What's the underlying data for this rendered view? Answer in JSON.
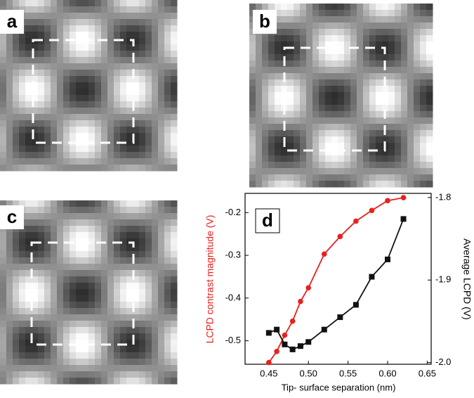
{
  "image_panels": [
    {
      "label": "a"
    },
    {
      "label": "b"
    },
    {
      "label": "c"
    }
  ],
  "chart_data": {
    "type": "line",
    "panel_label": "d",
    "xlabel": "Tip- surface separation (nm)",
    "ylabel": "LCPD contrast magnitude (V)",
    "y2label": "Average LCPD (V)",
    "xlim": [
      0.42,
      0.655
    ],
    "xticks": [
      0.45,
      {
        "value": 0.5,
        "label": "0.50"
      },
      0.55,
      {
        "value": 0.6,
        "label": "0.60"
      },
      0.65
    ],
    "ylim": [
      -0.555,
      -0.155
    ],
    "yticks": [
      -0.2,
      -0.3,
      -0.4,
      -0.5
    ],
    "y2lim": [
      -2.002,
      -1.795
    ],
    "y2ticks": [
      -1.8,
      -1.9,
      {
        "value": -2,
        "label": "-2.0"
      }
    ],
    "x": [
      0.45,
      0.46,
      0.47,
      0.48,
      0.49,
      0.5,
      0.52,
      0.54,
      0.56,
      0.58,
      0.6,
      0.62
    ],
    "series": [
      {
        "name": "LCPD contrast magnitude",
        "color": "#e8201e",
        "marker": "circle",
        "values": [
          -0.551,
          -0.525,
          -0.487,
          -0.454,
          -0.408,
          -0.376,
          -0.297,
          -0.256,
          -0.22,
          -0.195,
          -0.172,
          -0.165
        ]
      },
      {
        "name": "Average LCPD",
        "color": "#111111",
        "marker": "square",
        "axis": "y2",
        "values": [
          -1.964,
          -1.96,
          -1.978,
          -1.984,
          -1.98,
          -1.975,
          -1.96,
          -1.945,
          -1.93,
          -1.896,
          -1.875,
          -1.826
        ]
      }
    ]
  }
}
